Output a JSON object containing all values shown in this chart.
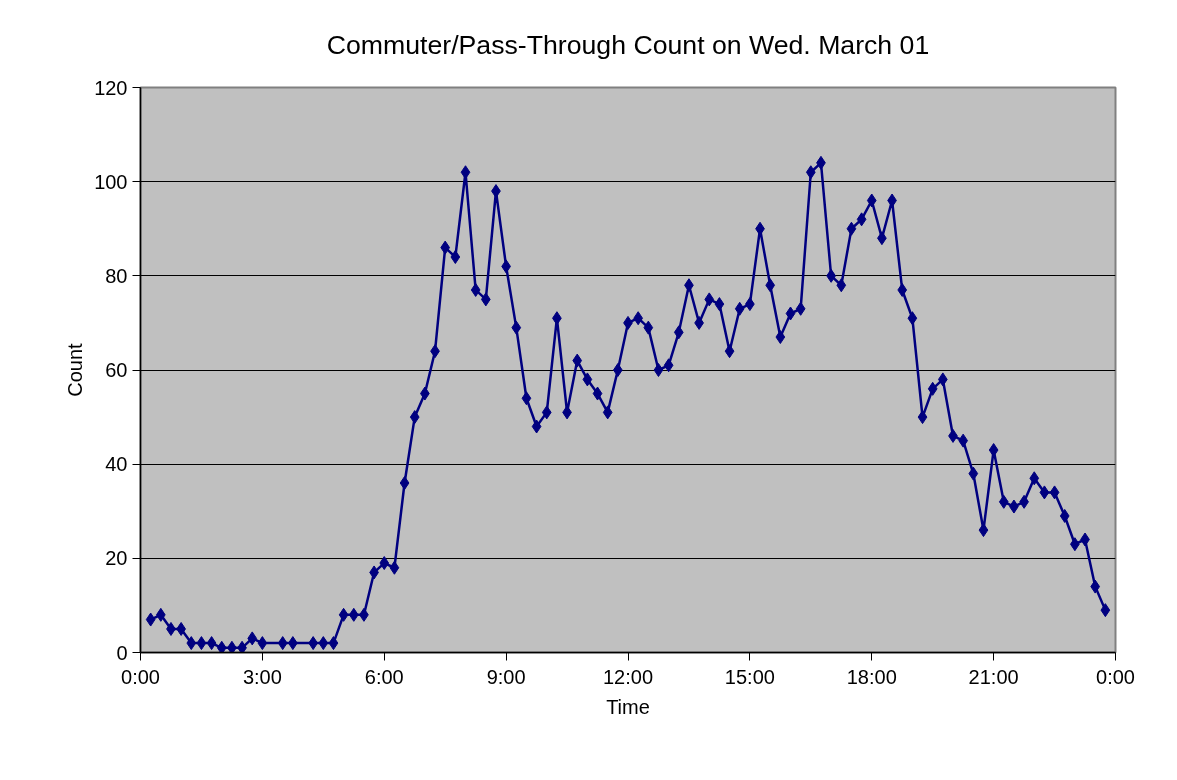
{
  "chart_data": {
    "type": "line",
    "title": "Commuter/Pass-Through Count on Wed. March 01",
    "xlabel": "Time",
    "ylabel": "Count",
    "x": [
      0.25,
      0.5,
      0.75,
      1,
      1.25,
      1.5,
      1.75,
      2,
      2.25,
      2.5,
      2.75,
      3,
      3.5,
      3.75,
      4.25,
      4.5,
      4.75,
      5,
      5.25,
      5.5,
      5.75,
      6,
      6.25,
      6.5,
      6.75,
      7,
      7.25,
      7.5,
      7.75,
      8,
      8.25,
      8.5,
      8.75,
      9,
      9.25,
      9.5,
      9.75,
      10,
      10.25,
      10.5,
      10.75,
      11,
      11.25,
      11.5,
      11.75,
      12,
      12.25,
      12.5,
      12.75,
      13,
      13.25,
      13.5,
      13.75,
      14,
      14.25,
      14.5,
      14.75,
      15,
      15.25,
      15.5,
      15.75,
      16,
      16.25,
      16.5,
      16.75,
      17,
      17.25,
      17.5,
      17.75,
      18,
      18.25,
      18.5,
      18.75,
      19,
      19.25,
      19.5,
      19.75,
      20,
      20.25,
      20.5,
      20.75,
      21,
      21.25,
      21.5,
      21.75,
      22,
      22.25,
      22.5,
      22.75,
      23,
      23.25,
      23.5,
      23.75
    ],
    "series": [
      {
        "color": "#000080",
        "values": [
          7,
          8,
          5,
          5,
          2,
          2,
          2,
          1,
          1,
          1,
          3,
          2,
          2,
          2,
          2,
          2,
          2,
          8,
          8,
          8,
          17,
          19,
          18,
          36,
          50,
          55,
          64,
          86,
          84,
          102,
          77,
          75,
          98,
          82,
          69,
          54,
          48,
          51,
          71,
          51,
          62,
          58,
          55,
          51,
          60,
          70,
          71,
          69,
          60,
          61,
          68,
          78,
          70,
          75,
          74,
          64,
          73,
          74,
          90,
          78,
          67,
          72,
          73,
          102,
          104,
          80,
          78,
          90,
          92,
          96,
          88,
          96,
          77,
          71,
          50,
          56,
          58,
          46,
          45,
          38,
          26,
          43,
          32,
          31,
          32,
          37,
          34,
          34,
          29,
          23,
          24,
          14,
          9
        ]
      }
    ],
    "xlim": [
      0,
      24
    ],
    "xticks": [
      {
        "value": 0,
        "label": "0:00"
      },
      {
        "value": 3,
        "label": "3:00"
      },
      {
        "value": 6,
        "label": "6:00"
      },
      {
        "value": 9,
        "label": "9:00"
      },
      {
        "value": 12,
        "label": "12:00"
      },
      {
        "value": 15,
        "label": "15:00"
      },
      {
        "value": 18,
        "label": "18:00"
      },
      {
        "value": 21,
        "label": "21:00"
      },
      {
        "value": 24,
        "label": "0:00"
      }
    ],
    "ylim": [
      0,
      120
    ],
    "yticks": [
      0,
      20,
      40,
      60,
      80,
      100,
      120
    ],
    "grid": "y",
    "marker": "diamond",
    "line_style": "solid"
  }
}
